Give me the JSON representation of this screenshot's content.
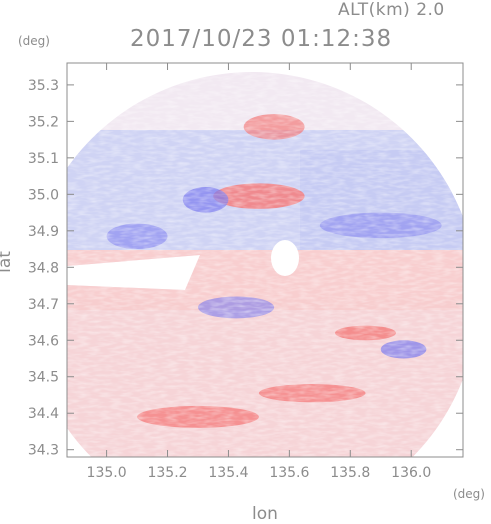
{
  "header": {
    "altitude": "ALT(km) 2.0",
    "timestamp": "2017/10/23 01:12:38"
  },
  "axes": {
    "x_unit": "(deg)",
    "y_unit": "(deg)",
    "xlabel": "lon",
    "ylabel": "lat"
  },
  "chart_data": {
    "type": "heatmap",
    "title": "",
    "xlabel": "lon",
    "ylabel": "lat",
    "x_unit": "(deg)",
    "y_unit": "(deg)",
    "xlim": [
      134.87,
      136.17
    ],
    "ylim": [
      34.28,
      35.36
    ],
    "x_ticks": [
      135.0,
      135.2,
      135.4,
      135.6,
      135.8,
      136.0
    ],
    "x_tick_labels": [
      "135.0",
      "135.2",
      "135.4",
      "135.6",
      "135.8",
      "136.0"
    ],
    "y_ticks": [
      34.3,
      34.4,
      34.5,
      34.6,
      34.7,
      34.8,
      34.9,
      35.0,
      35.1,
      35.2,
      35.3
    ],
    "y_tick_labels": [
      "34.3",
      "34.4",
      "34.5",
      "34.6",
      "34.7",
      "34.8",
      "34.9",
      "35.0",
      "35.1",
      "35.2",
      "35.3"
    ],
    "radar_center": [
      135.52,
      34.81
    ],
    "colors": {
      "positive": "#f47b7b",
      "negative": "#7b7bf0",
      "neutral": "#f4e8ee",
      "axis": "#8c8c8c",
      "background": "#ffffff"
    },
    "regions": [
      {
        "lon": [
          135.35,
          135.65
        ],
        "lat": [
          34.96,
          35.03
        ],
        "sign": "positive",
        "level": 0.85
      },
      {
        "lon": [
          135.45,
          135.65
        ],
        "lat": [
          35.15,
          35.22
        ],
        "sign": "positive",
        "level": 0.7
      },
      {
        "lon": [
          135.25,
          135.4
        ],
        "lat": [
          34.95,
          35.02
        ],
        "sign": "negative",
        "level": 0.7
      },
      {
        "lon": [
          135.0,
          135.2
        ],
        "lat": [
          34.85,
          34.92
        ],
        "sign": "negative",
        "level": 0.55
      },
      {
        "lon": [
          135.7,
          136.1
        ],
        "lat": [
          34.88,
          34.95
        ],
        "sign": "negative",
        "level": 0.5
      },
      {
        "lon": [
          135.1,
          135.5
        ],
        "lat": [
          34.36,
          34.42
        ],
        "sign": "positive",
        "level": 0.75
      },
      {
        "lon": [
          135.5,
          135.85
        ],
        "lat": [
          34.43,
          34.48
        ],
        "sign": "positive",
        "level": 0.75
      },
      {
        "lon": [
          135.75,
          135.95
        ],
        "lat": [
          34.6,
          34.64
        ],
        "sign": "positive",
        "level": 0.8
      },
      {
        "lon": [
          135.9,
          136.05
        ],
        "lat": [
          34.55,
          34.6
        ],
        "sign": "negative",
        "level": 0.7
      },
      {
        "lon": [
          135.3,
          135.55
        ],
        "lat": [
          34.66,
          34.72
        ],
        "sign": "negative",
        "level": 0.6
      }
    ]
  }
}
